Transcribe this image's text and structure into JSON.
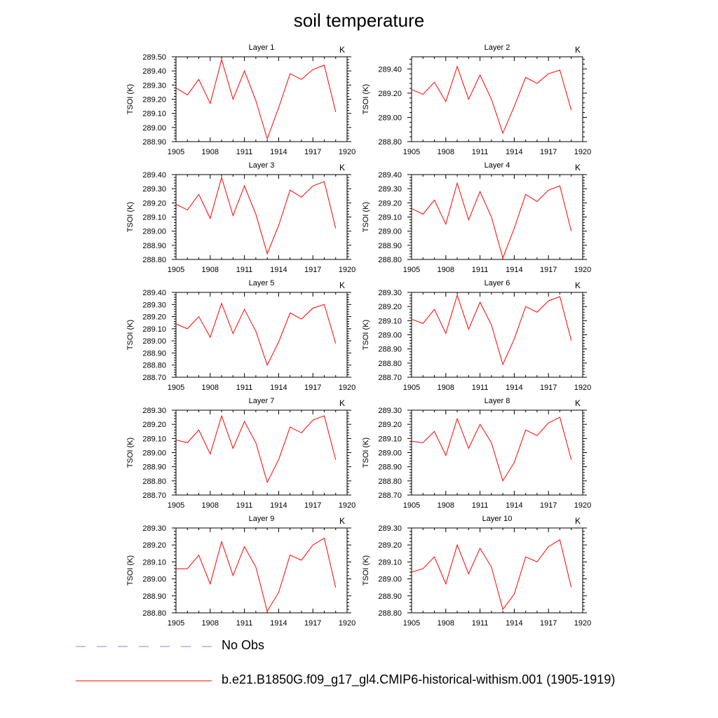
{
  "title": "soil temperature",
  "colors": {
    "model_line": "#ff0000",
    "obs_line": "#8080ff"
  },
  "legend": {
    "entries": [
      {
        "label": "No Obs",
        "style": "dashed",
        "color": "#8080ff"
      },
      {
        "label": "b.e21.B1850G.f09_g17_gl4.CMIP6-historical-withism.001 (1905-1919)",
        "style": "solid",
        "color": "#ff0000"
      }
    ]
  },
  "chart_data": [
    {
      "type": "line",
      "title": "Layer 1",
      "unit": "K",
      "ylabel": "TSOI  (K)",
      "xlim": [
        1905,
        1920
      ],
      "xticks": [
        "1905",
        "1908",
        "1911",
        "1914",
        "1917",
        "1920"
      ],
      "ylim": [
        288.9,
        289.5
      ],
      "yticks": [
        "288.90",
        "289.00",
        "289.10",
        "289.20",
        "289.30",
        "289.40",
        "289.50"
      ],
      "series": [
        {
          "x": [
            1905,
            1906,
            1907,
            1908,
            1909,
            1910,
            1911,
            1912,
            1913,
            1914,
            1915,
            1916,
            1917,
            1918,
            1919
          ],
          "values": [
            289.28,
            289.23,
            289.34,
            289.17,
            289.48,
            289.2,
            289.4,
            289.19,
            288.92,
            289.14,
            289.38,
            289.34,
            289.41,
            289.44,
            289.11
          ]
        }
      ]
    },
    {
      "type": "line",
      "title": "Layer 2",
      "unit": "K",
      "ylabel": "TSOI  (K)",
      "xlim": [
        1905,
        1920
      ],
      "xticks": [
        "1905",
        "1908",
        "1911",
        "1914",
        "1917",
        "1920"
      ],
      "ylim": [
        288.8,
        289.5
      ],
      "yticks": [
        "288.80",
        "289.00",
        "289.20",
        "289.40"
      ],
      "series": [
        {
          "x": [
            1905,
            1906,
            1907,
            1908,
            1909,
            1910,
            1911,
            1912,
            1913,
            1914,
            1915,
            1916,
            1917,
            1918,
            1919
          ],
          "values": [
            289.23,
            289.19,
            289.29,
            289.13,
            289.42,
            289.15,
            289.35,
            289.15,
            288.87,
            289.09,
            289.33,
            289.28,
            289.36,
            289.39,
            289.06
          ]
        }
      ]
    },
    {
      "type": "line",
      "title": "Layer 3",
      "unit": "K",
      "ylabel": "TSOI  (K)",
      "xlim": [
        1905,
        1920
      ],
      "xticks": [
        "1905",
        "1908",
        "1911",
        "1914",
        "1917",
        "1920"
      ],
      "ylim": [
        288.8,
        289.4
      ],
      "yticks": [
        "288.80",
        "288.90",
        "289.00",
        "289.10",
        "289.20",
        "289.30",
        "289.40"
      ],
      "series": [
        {
          "x": [
            1905,
            1906,
            1907,
            1908,
            1909,
            1910,
            1911,
            1912,
            1913,
            1914,
            1915,
            1916,
            1917,
            1918,
            1919
          ],
          "values": [
            289.19,
            289.15,
            289.26,
            289.09,
            289.38,
            289.11,
            289.32,
            289.12,
            288.84,
            289.04,
            289.29,
            289.24,
            289.32,
            289.35,
            289.02
          ]
        }
      ]
    },
    {
      "type": "line",
      "title": "Layer 4",
      "unit": "K",
      "ylabel": "TSOI  (K)",
      "xlim": [
        1905,
        1920
      ],
      "xticks": [
        "1905",
        "1908",
        "1911",
        "1914",
        "1917",
        "1920"
      ],
      "ylim": [
        288.8,
        289.4
      ],
      "yticks": [
        "288.80",
        "288.90",
        "289.00",
        "289.10",
        "289.20",
        "289.30",
        "289.40"
      ],
      "series": [
        {
          "x": [
            1905,
            1906,
            1907,
            1908,
            1909,
            1910,
            1911,
            1912,
            1913,
            1914,
            1915,
            1916,
            1917,
            1918,
            1919
          ],
          "values": [
            289.16,
            289.12,
            289.22,
            289.05,
            289.34,
            289.08,
            289.28,
            289.1,
            288.81,
            289.02,
            289.26,
            289.21,
            289.29,
            289.32,
            289.0
          ]
        }
      ]
    },
    {
      "type": "line",
      "title": "Layer 5",
      "unit": "K",
      "ylabel": "TSOI  (K)",
      "xlim": [
        1905,
        1920
      ],
      "xticks": [
        "1905",
        "1908",
        "1911",
        "1914",
        "1917",
        "1920"
      ],
      "ylim": [
        288.7,
        289.4
      ],
      "yticks": [
        "288.70",
        "288.80",
        "288.90",
        "289.00",
        "289.10",
        "289.20",
        "289.30",
        "289.40"
      ],
      "series": [
        {
          "x": [
            1905,
            1906,
            1907,
            1908,
            1909,
            1910,
            1911,
            1912,
            1913,
            1914,
            1915,
            1916,
            1917,
            1918,
            1919
          ],
          "values": [
            289.14,
            289.1,
            289.2,
            289.03,
            289.31,
            289.06,
            289.26,
            289.08,
            288.8,
            288.99,
            289.23,
            289.18,
            289.27,
            289.3,
            288.98
          ]
        }
      ]
    },
    {
      "type": "line",
      "title": "Layer 6",
      "unit": "K",
      "ylabel": "TSOI  (K)",
      "xlim": [
        1905,
        1920
      ],
      "xticks": [
        "1905",
        "1908",
        "1911",
        "1914",
        "1917",
        "1920"
      ],
      "ylim": [
        288.7,
        289.3
      ],
      "yticks": [
        "288.70",
        "288.80",
        "288.90",
        "289.00",
        "289.10",
        "289.20",
        "289.30"
      ],
      "series": [
        {
          "x": [
            1905,
            1906,
            1907,
            1908,
            1909,
            1910,
            1911,
            1912,
            1913,
            1914,
            1915,
            1916,
            1917,
            1918,
            1919
          ],
          "values": [
            289.11,
            289.08,
            289.18,
            289.01,
            289.28,
            289.04,
            289.23,
            289.07,
            288.79,
            288.97,
            289.2,
            289.16,
            289.24,
            289.27,
            288.96
          ]
        }
      ]
    },
    {
      "type": "line",
      "title": "Layer 7",
      "unit": "K",
      "ylabel": "TSOI  (K)",
      "xlim": [
        1905,
        1920
      ],
      "xticks": [
        "1905",
        "1908",
        "1911",
        "1914",
        "1917",
        "1920"
      ],
      "ylim": [
        288.7,
        289.3
      ],
      "yticks": [
        "288.70",
        "288.80",
        "288.90",
        "289.00",
        "289.10",
        "289.20",
        "289.30"
      ],
      "series": [
        {
          "x": [
            1905,
            1906,
            1907,
            1908,
            1909,
            1910,
            1911,
            1912,
            1913,
            1914,
            1915,
            1916,
            1917,
            1918,
            1919
          ],
          "values": [
            289.09,
            289.07,
            289.16,
            288.99,
            289.26,
            289.03,
            289.22,
            289.07,
            288.79,
            288.95,
            289.18,
            289.14,
            289.23,
            289.26,
            288.95
          ]
        }
      ]
    },
    {
      "type": "line",
      "title": "Layer 8",
      "unit": "K",
      "ylabel": "TSOI  (K)",
      "xlim": [
        1905,
        1920
      ],
      "xticks": [
        "1905",
        "1908",
        "1911",
        "1914",
        "1917",
        "1920"
      ],
      "ylim": [
        288.7,
        289.3
      ],
      "yticks": [
        "288.70",
        "288.80",
        "288.90",
        "289.00",
        "289.10",
        "289.20",
        "289.30"
      ],
      "series": [
        {
          "x": [
            1905,
            1906,
            1907,
            1908,
            1909,
            1910,
            1911,
            1912,
            1913,
            1914,
            1915,
            1916,
            1917,
            1918,
            1919
          ],
          "values": [
            289.08,
            289.07,
            289.15,
            288.98,
            289.24,
            289.03,
            289.2,
            289.07,
            288.8,
            288.93,
            289.16,
            289.12,
            289.21,
            289.25,
            288.95
          ]
        }
      ]
    },
    {
      "type": "line",
      "title": "Layer 9",
      "unit": "K",
      "ylabel": "TSOI  (K)",
      "xlim": [
        1905,
        1920
      ],
      "xticks": [
        "1905",
        "1908",
        "1911",
        "1914",
        "1917",
        "1920"
      ],
      "ylim": [
        288.8,
        289.3
      ],
      "yticks": [
        "288.80",
        "288.90",
        "289.00",
        "289.10",
        "289.20",
        "289.30"
      ],
      "series": [
        {
          "x": [
            1905,
            1906,
            1907,
            1908,
            1909,
            1910,
            1911,
            1912,
            1913,
            1914,
            1915,
            1916,
            1917,
            1918,
            1919
          ],
          "values": [
            289.06,
            289.06,
            289.14,
            288.97,
            289.22,
            289.02,
            289.19,
            289.07,
            288.81,
            288.92,
            289.14,
            289.11,
            289.2,
            289.24,
            288.95
          ]
        }
      ]
    },
    {
      "type": "line",
      "title": "Layer 10",
      "unit": "K",
      "ylabel": "TSOI  (K)",
      "xlim": [
        1905,
        1920
      ],
      "xticks": [
        "1905",
        "1908",
        "1911",
        "1914",
        "1917",
        "1920"
      ],
      "ylim": [
        288.8,
        289.3
      ],
      "yticks": [
        "288.80",
        "288.90",
        "289.00",
        "289.10",
        "289.20",
        "289.30"
      ],
      "series": [
        {
          "x": [
            1905,
            1906,
            1907,
            1908,
            1909,
            1910,
            1911,
            1912,
            1913,
            1914,
            1915,
            1916,
            1917,
            1918,
            1919
          ],
          "values": [
            289.04,
            289.06,
            289.13,
            288.97,
            289.2,
            289.03,
            289.18,
            289.07,
            288.82,
            288.91,
            289.13,
            289.1,
            289.19,
            289.23,
            288.95
          ]
        }
      ]
    }
  ]
}
